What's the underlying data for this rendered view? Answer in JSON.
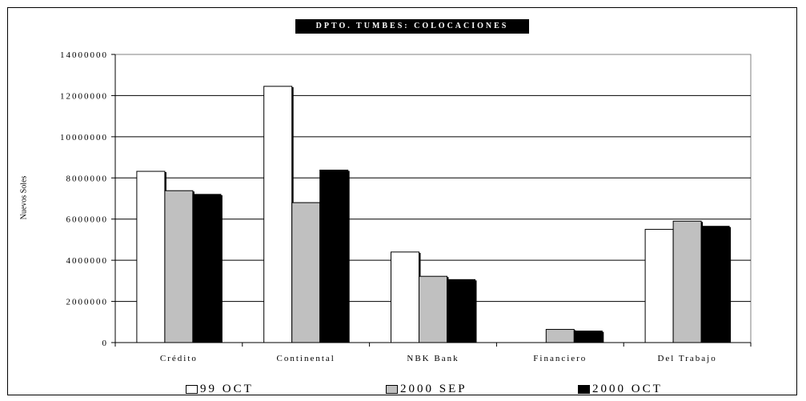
{
  "chart_data": {
    "type": "bar",
    "title": "DPTO. TUMBES: COLOCACIONES",
    "ylabel": "Nuevos Soles",
    "xlabel": "",
    "ylim": [
      0,
      14000000
    ],
    "yticks": [
      0,
      2000000,
      4000000,
      6000000,
      8000000,
      10000000,
      12000000,
      14000000
    ],
    "ytick_labels": [
      "0",
      "2000000",
      "4000000",
      "6000000",
      "8000000",
      "10000000",
      "12000000",
      "14000000"
    ],
    "grid": true,
    "legend_position": "bottom",
    "categories": [
      "Crédito",
      "Continental",
      "NBK Bank",
      "Financiero",
      "Del Trabajo"
    ],
    "series": [
      {
        "name": "99 OCT",
        "color": "#ffffff",
        "values": [
          8320000,
          12450000,
          4400000,
          0,
          5500000
        ]
      },
      {
        "name": "2000 SEP",
        "color": "#c0c0c0",
        "values": [
          7380000,
          6800000,
          3220000,
          640000,
          5900000
        ]
      },
      {
        "name": "2000 OCT",
        "color": "#000000",
        "values": [
          7200000,
          8380000,
          3060000,
          560000,
          5650000
        ]
      }
    ]
  }
}
